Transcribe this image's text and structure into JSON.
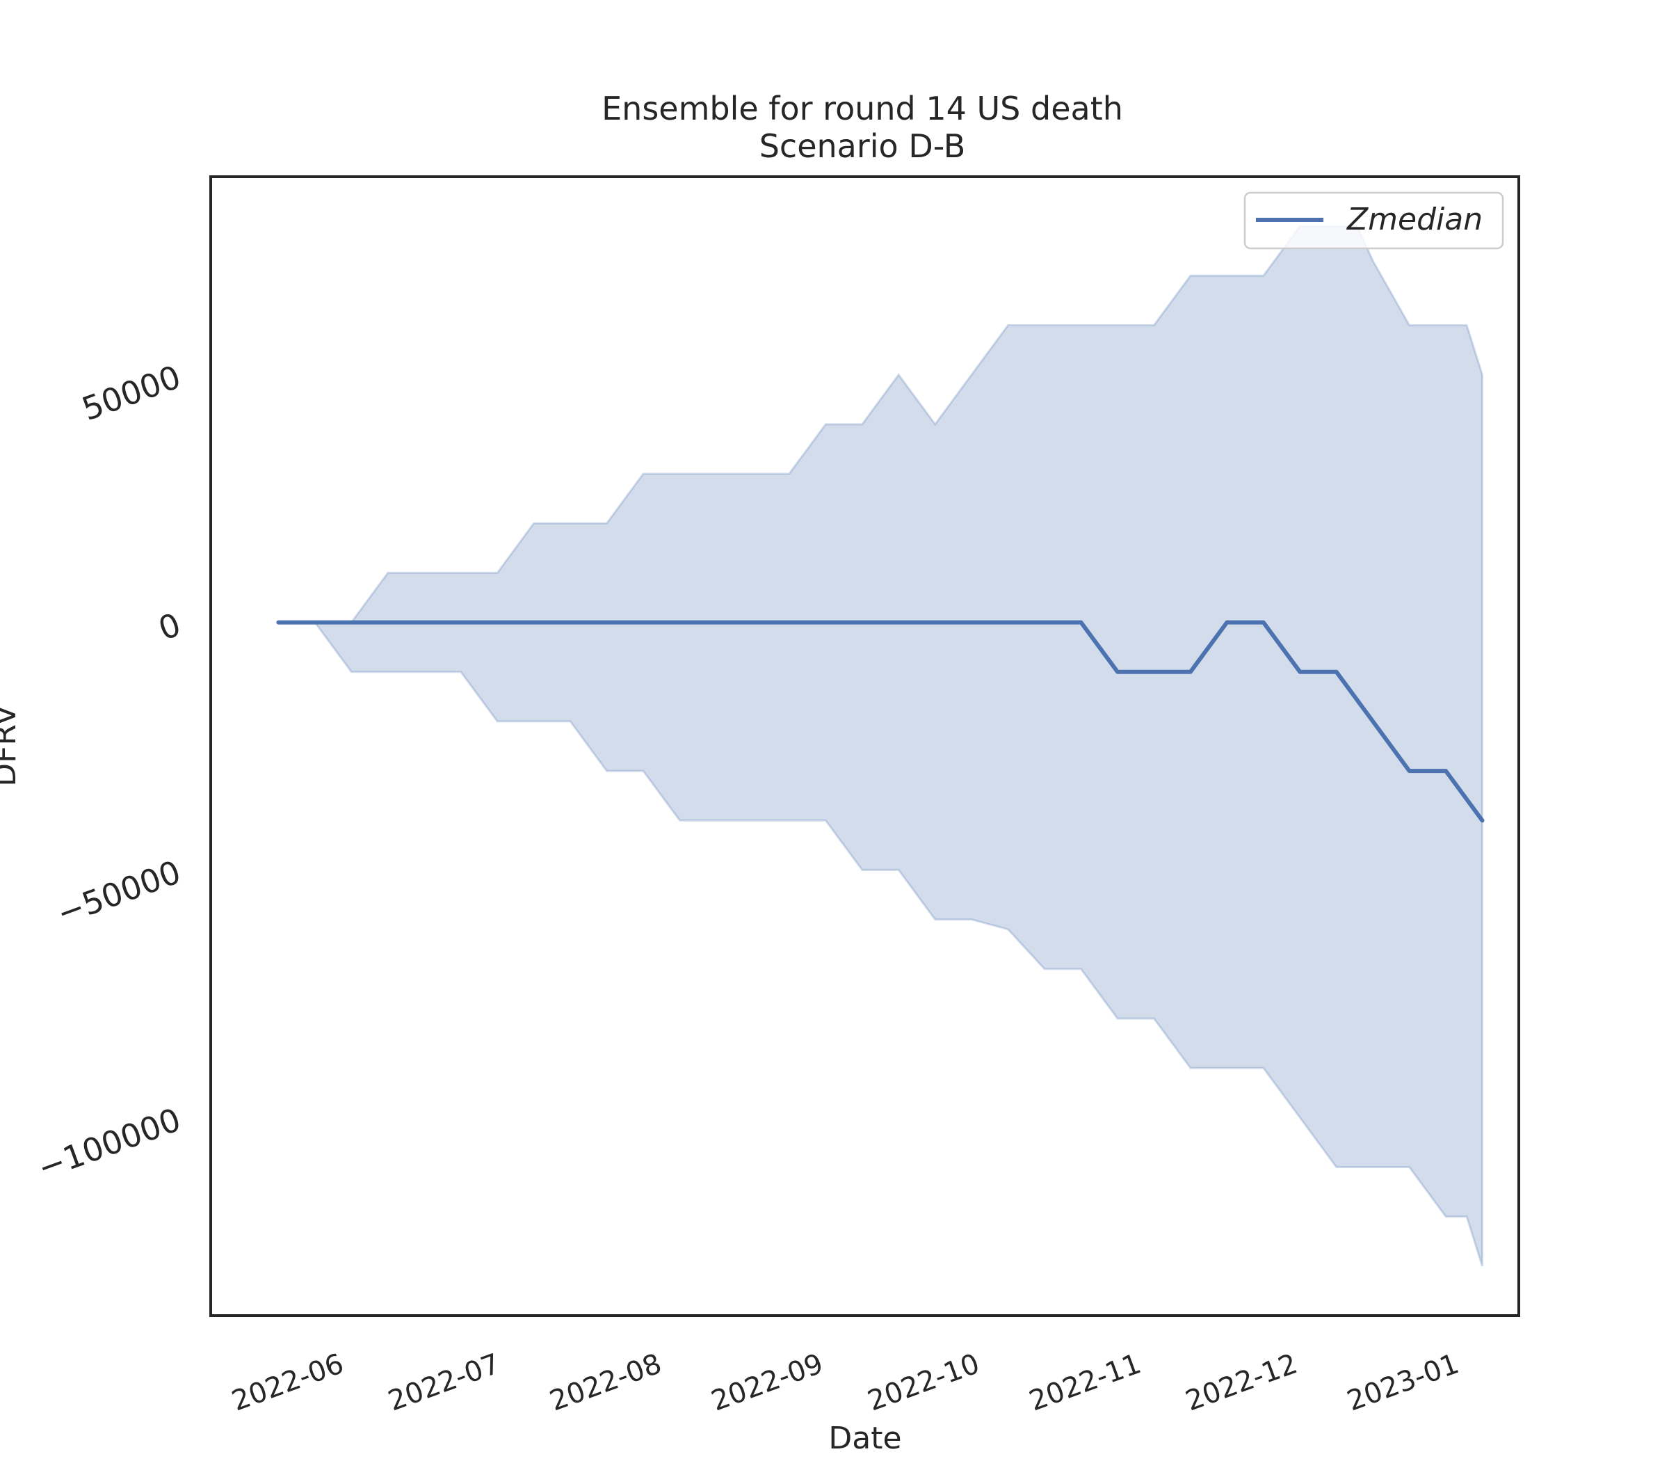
{
  "chart_data": {
    "type": "area",
    "title": "Ensemble for round 14 US death",
    "subtitle": "Scenario D-B",
    "xlabel": "Date",
    "ylabel": "DFRV",
    "xlim": [
      "2022-05-08",
      "2023-01-14"
    ],
    "ylim": [
      -140000,
      90000
    ],
    "x_ticks": [
      "2022-06",
      "2022-07",
      "2022-08",
      "2022-09",
      "2022-10",
      "2022-11",
      "2022-12",
      "2023-01"
    ],
    "y_ticks": [
      -100000,
      -50000,
      0,
      50000
    ],
    "y_tick_labels": [
      "−100000",
      "−50000",
      "0",
      "50000"
    ],
    "grid": false,
    "legend_position": "upper right",
    "colors": {
      "line": "#4c72b0",
      "band": "#4c72b0",
      "axes": "#262626"
    },
    "x": [
      "2022-05-21",
      "2022-05-28",
      "2022-06-04",
      "2022-06-11",
      "2022-06-18",
      "2022-06-25",
      "2022-07-02",
      "2022-07-09",
      "2022-07-16",
      "2022-07-23",
      "2022-07-30",
      "2022-08-06",
      "2022-08-13",
      "2022-08-20",
      "2022-08-27",
      "2022-09-03",
      "2022-09-10",
      "2022-09-17",
      "2022-09-24",
      "2022-10-01",
      "2022-10-08",
      "2022-10-15",
      "2022-10-22",
      "2022-10-29",
      "2022-11-05",
      "2022-11-12",
      "2022-11-19",
      "2022-11-26",
      "2022-12-03",
      "2022-12-10",
      "2022-12-17",
      "2022-12-24",
      "2022-12-31",
      "2023-01-07"
    ],
    "series": [
      {
        "name": "Zmedian",
        "values": [
          0,
          0,
          0,
          0,
          0,
          0,
          0,
          0,
          0,
          0,
          0,
          0,
          0,
          0,
          0,
          0,
          0,
          0,
          0,
          0,
          0,
          0,
          0,
          -10000,
          -10000,
          -10000,
          0,
          0,
          -10000,
          -10000,
          -20000,
          -30000,
          -30000,
          -40000
        ]
      }
    ],
    "band": {
      "upper": [
        0,
        0,
        0,
        10000,
        10000,
        10000,
        10000,
        20000,
        20000,
        20000,
        30000,
        30000,
        30000,
        30000,
        30000,
        40000,
        40000,
        50000,
        40000,
        50000,
        60000,
        60000,
        60000,
        60000,
        60000,
        70000,
        70000,
        70000,
        80000,
        80000,
        80000,
        80000,
        73000,
        60000,
        60000,
        60000,
        50000
      ],
      "lower": [
        0,
        0,
        -10000,
        -10000,
        -10000,
        -10000,
        -20000,
        -20000,
        -20000,
        -30000,
        -30000,
        -40000,
        -40000,
        -40000,
        -40000,
        -40000,
        -50000,
        -50000,
        -60000,
        -60000,
        -62000,
        -70000,
        -70000,
        -80000,
        -80000,
        -90000,
        -90000,
        -90000,
        -100000,
        -110000,
        -110000,
        -110000,
        -120000,
        -120000,
        -130000
      ],
      "x_upper": [
        "2022-05-21",
        "2022-05-28",
        "2022-06-04",
        "2022-06-11",
        "2022-06-18",
        "2022-06-25",
        "2022-07-02",
        "2022-07-09",
        "2022-07-16",
        "2022-07-23",
        "2022-07-30",
        "2022-08-06",
        "2022-08-13",
        "2022-08-20",
        "2022-08-27",
        "2022-09-03",
        "2022-09-10",
        "2022-09-17",
        "2022-09-24",
        "2022-10-01",
        "2022-10-08",
        "2022-10-15",
        "2022-10-22",
        "2022-10-29",
        "2022-11-05",
        "2022-11-12",
        "2022-11-19",
        "2022-11-26",
        "2022-12-03",
        "2022-12-06",
        "2022-12-10",
        "2022-12-14",
        "2022-12-17",
        "2022-12-24",
        "2022-12-31",
        "2023-01-04",
        "2023-01-07"
      ],
      "x_lower": [
        "2022-05-21",
        "2022-05-28",
        "2022-06-04",
        "2022-06-11",
        "2022-06-18",
        "2022-06-25",
        "2022-07-02",
        "2022-07-09",
        "2022-07-16",
        "2022-07-23",
        "2022-07-30",
        "2022-08-06",
        "2022-08-13",
        "2022-08-20",
        "2022-08-27",
        "2022-09-03",
        "2022-09-10",
        "2022-09-17",
        "2022-09-24",
        "2022-10-01",
        "2022-10-08",
        "2022-10-15",
        "2022-10-22",
        "2022-10-29",
        "2022-11-05",
        "2022-11-12",
        "2022-11-19",
        "2022-11-26",
        "2022-12-03",
        "2022-12-10",
        "2022-12-17",
        "2022-12-24",
        "2022-12-31",
        "2023-01-04",
        "2023-01-07"
      ]
    }
  }
}
